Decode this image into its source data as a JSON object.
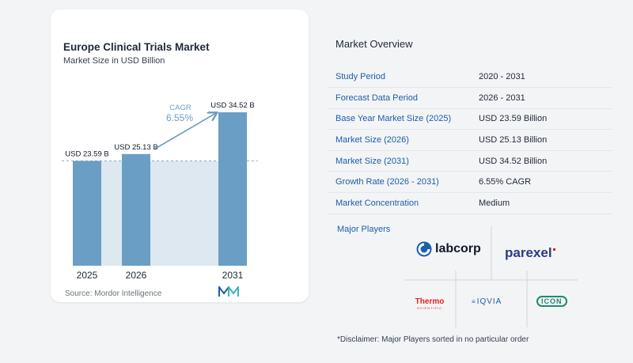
{
  "chart": {
    "title": "Europe Clinical Trials Market",
    "subtitle": "Market Size in USD Billion",
    "source": "Source:  Mordor Intelligence",
    "cagr_label": "CAGR",
    "cagr_value": "6.55%"
  },
  "chart_data": {
    "type": "bar",
    "categories": [
      "2025",
      "2026",
      "2031"
    ],
    "values": [
      23.59,
      25.13,
      34.52
    ],
    "data_labels": [
      "USD 23.59 B",
      "USD 25.13 B",
      "USD 34.52 B"
    ],
    "title": "Europe Clinical Trials Market",
    "subtitle": "Market Size in USD Billion",
    "ylim": [
      0,
      34.52
    ],
    "bar_color": "#6a9ec4",
    "shade_color": "#dde8f1",
    "grid": false
  },
  "overview": {
    "title": "Market Overview",
    "rows": [
      {
        "label": "Study Period",
        "value": "2020 - 2031"
      },
      {
        "label": "Forecast Data Period",
        "value": "2026 - 2031"
      },
      {
        "label": "Base Year Market Size (2025)",
        "value": "USD 23.59 Billion"
      },
      {
        "label": "Market Size (2026)",
        "value": "USD 25.13 Billion"
      },
      {
        "label": "Market Size (2031)",
        "value": "USD 34.52 Billion"
      },
      {
        "label": "Growth Rate (2026 - 2031)",
        "value": "6.55% CAGR"
      },
      {
        "label": "Market Concentration",
        "value": "Medium"
      }
    ]
  },
  "players": {
    "title": "Major Players",
    "items": [
      "labcorp",
      "parexel",
      "Thermo",
      "SCIENTIFIC",
      "IQVIA",
      "ICON"
    ]
  },
  "disclaimer": "*Disclaimer: Major Players sorted in no particular order",
  "colors": {
    "accent": "#1d5ea8",
    "bar": "#6a9ec4",
    "parexel": "#2a3a8c",
    "thermo": "#e2231a",
    "icon_green": "#1f8a70"
  }
}
